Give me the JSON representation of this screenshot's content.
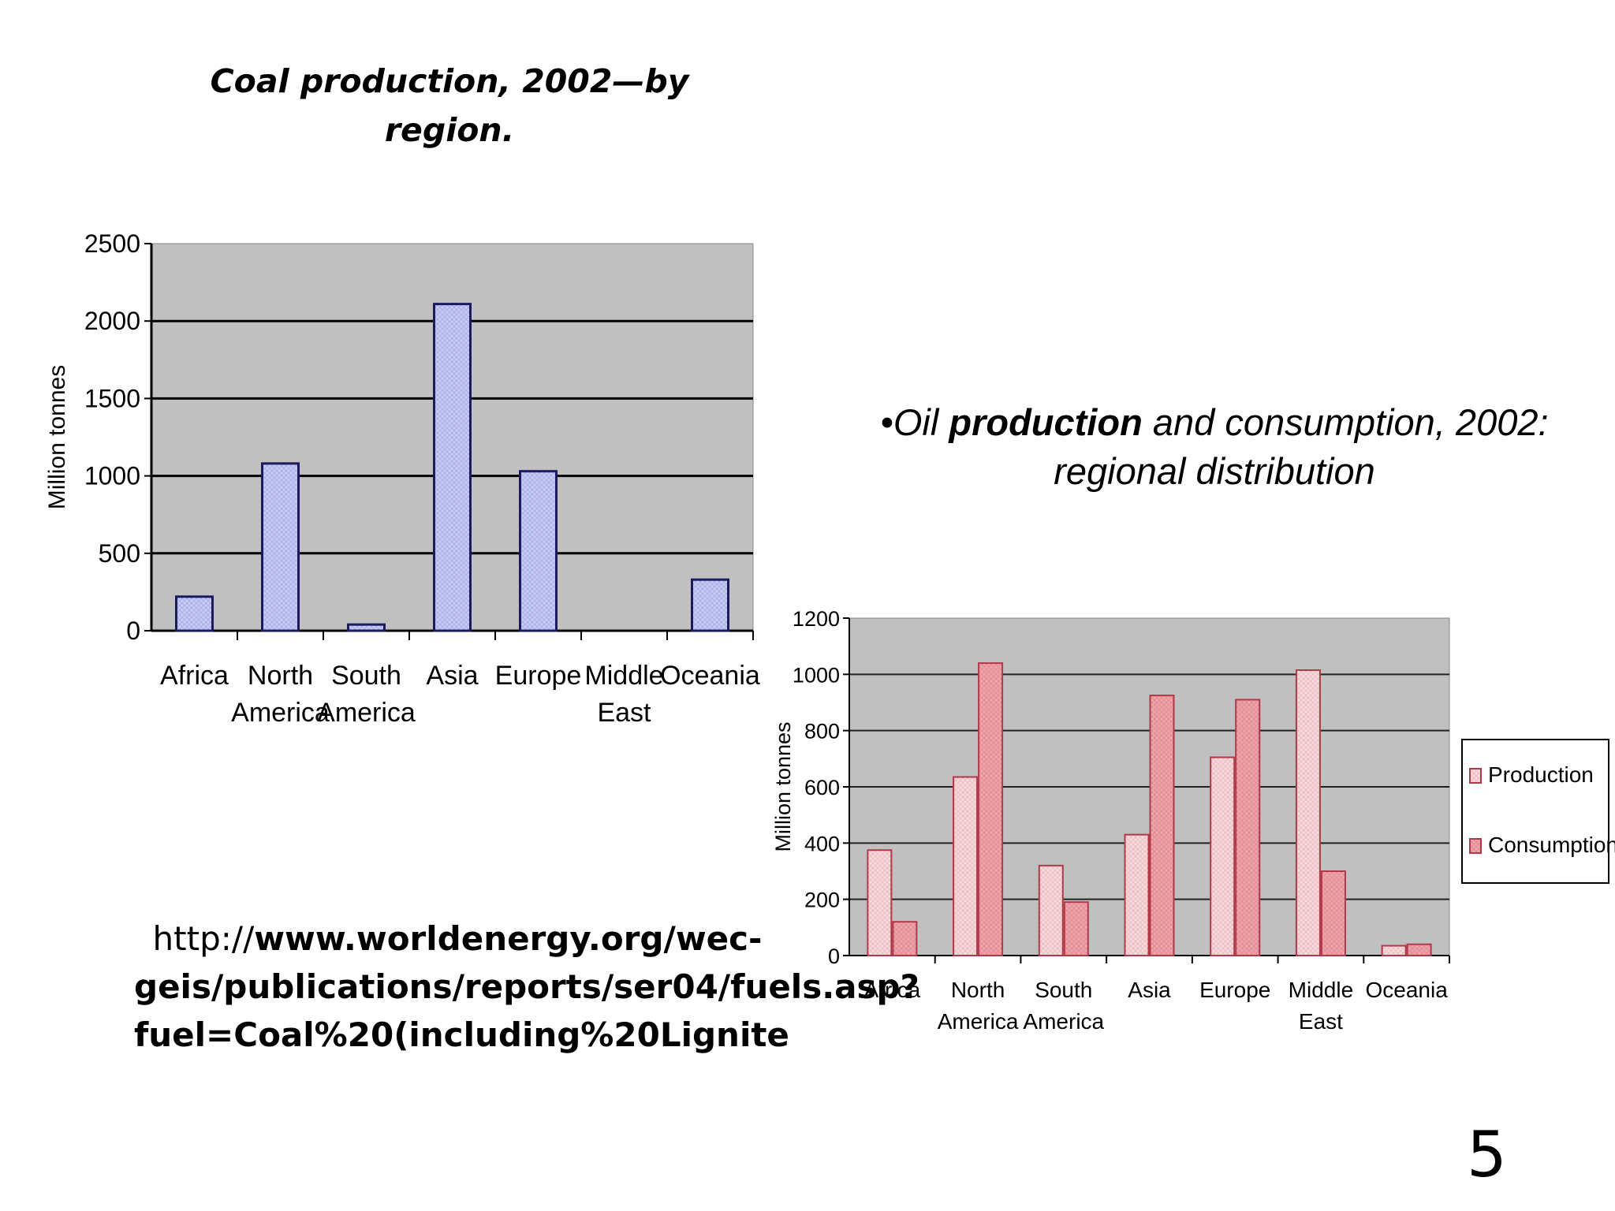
{
  "slide": {
    "coal_title": "Coal production, 2002—by region.",
    "oil_title_prefix": "•Oil ",
    "oil_title_bold": "production",
    "oil_title_suffix": " and consumption, 2002: regional distribution",
    "source_prefix": "http://",
    "source_bold": "www.worldenergy.org/wec-geis/publications/reports/ser04/fuels.asp?fuel=Coal%20(including%20Lignite",
    "page_number": "5"
  },
  "chart_data": [
    {
      "type": "bar",
      "categories": [
        "Africa",
        "North America",
        "South America",
        "Asia",
        "Europe",
        "Middle East",
        "Oceania"
      ],
      "category_lines": [
        [
          "Africa"
        ],
        [
          "North",
          "America"
        ],
        [
          "South",
          "America"
        ],
        [
          "Asia"
        ],
        [
          "Europe"
        ],
        [
          "Middle",
          "East"
        ],
        [
          "Oceania"
        ]
      ],
      "values": [
        220,
        1080,
        40,
        2110,
        1030,
        0,
        330
      ],
      "ylabel": "Million tonnes",
      "ylim": [
        0,
        2500
      ],
      "yticks": [
        0,
        500,
        1000,
        1500,
        2000,
        2500
      ],
      "grid": true,
      "legend": "none",
      "colors": {
        "bar_fill": "#c8caf3",
        "bar_stroke": "#1a1a5e",
        "plot_bg": "#c0c0c0"
      }
    },
    {
      "type": "bar",
      "categories": [
        "Africa",
        "North America",
        "South America",
        "Asia",
        "Europe",
        "Middle East",
        "Oceania"
      ],
      "category_lines": [
        [
          "Africa"
        ],
        [
          "North",
          "America"
        ],
        [
          "South",
          "America"
        ],
        [
          "Asia"
        ],
        [
          "Europe"
        ],
        [
          "Middle",
          "East"
        ],
        [
          "Oceania"
        ]
      ],
      "series": [
        {
          "name": "Production",
          "values": [
            375,
            635,
            320,
            430,
            705,
            1015,
            35
          ]
        },
        {
          "name": "Consumption",
          "values": [
            120,
            1040,
            190,
            925,
            910,
            300,
            40
          ]
        }
      ],
      "ylabel": "Million tonnes",
      "ylim": [
        0,
        1200
      ],
      "yticks": [
        0,
        200,
        400,
        600,
        800,
        1000,
        1200
      ],
      "grid": true,
      "legend": "right",
      "colors": {
        "production_fill": "#f7d8db",
        "consumption_fill": "#eea2a8",
        "bar_stroke": "#b03a48",
        "plot_bg": "#c0c0c0"
      }
    }
  ]
}
